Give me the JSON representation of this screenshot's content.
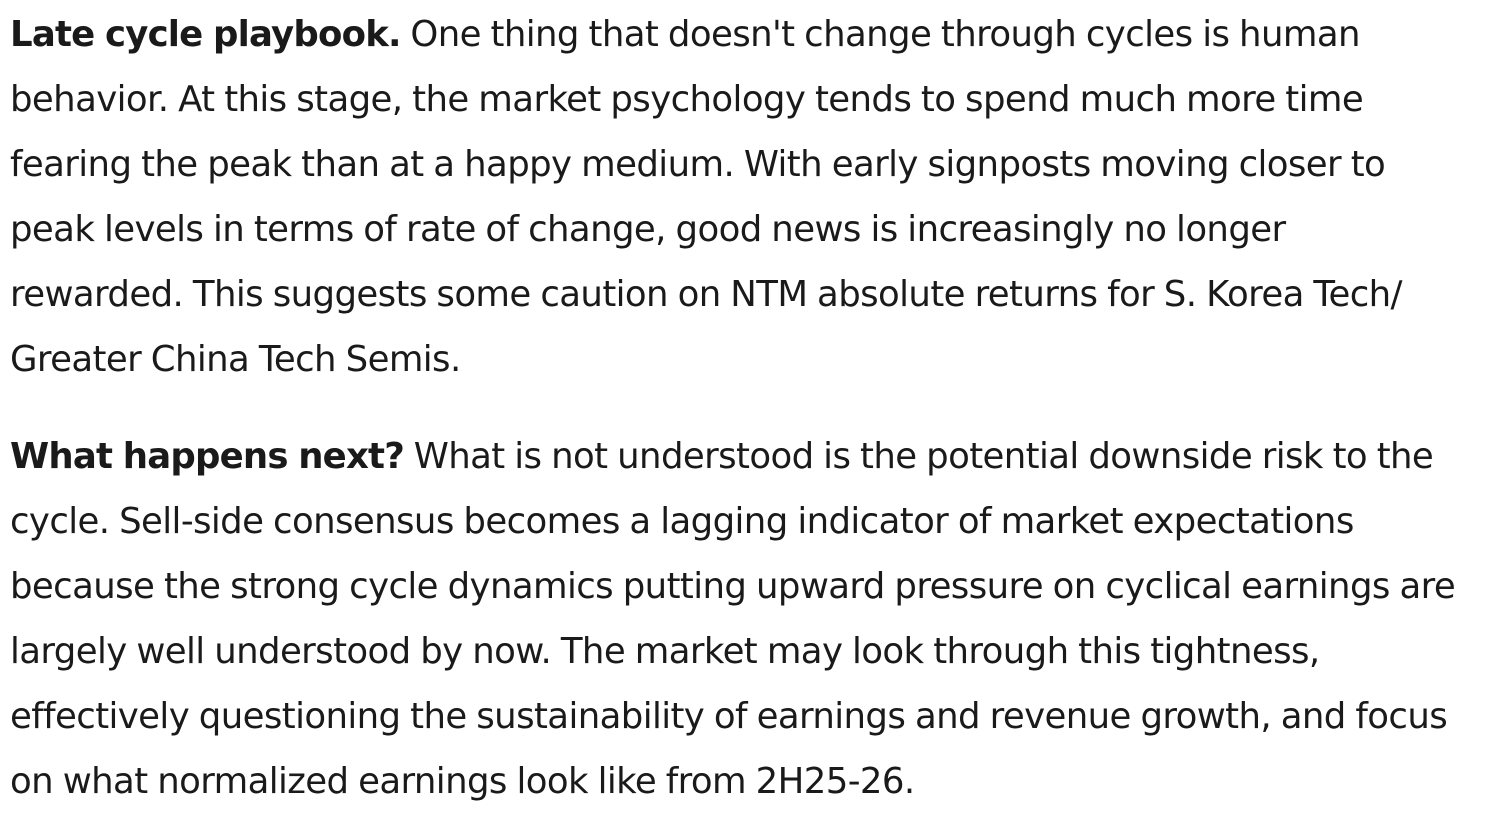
{
  "paragraphs": [
    {
      "lead": "Late cycle playbook.",
      "lines": [
        "One thing that doesn't change through cycles is human",
        "behavior. At this stage, the market psychology tends to spend much more time",
        "fearing the peak than at a happy medium. With early signposts moving closer to",
        "peak levels in terms of rate of change, good news is increasingly no longer",
        "rewarded. This suggests some caution on NTM absolute returns for S. Korea Tech/",
        "Greater China Tech Semis."
      ]
    },
    {
      "lead": "What happens next?",
      "lines": [
        "What is not understood is the potential downside risk to the",
        "cycle. Sell-side consensus becomes a lagging indicator of market expectations",
        "because the strong cycle dynamics putting upward pressure on cyclical earnings are",
        "largely well understood by now. The market may look through this tightness,",
        "effectively questioning the sustainability of earnings and revenue growth, and focus",
        "on what normalized earnings look like from 2H25-26."
      ]
    }
  ]
}
